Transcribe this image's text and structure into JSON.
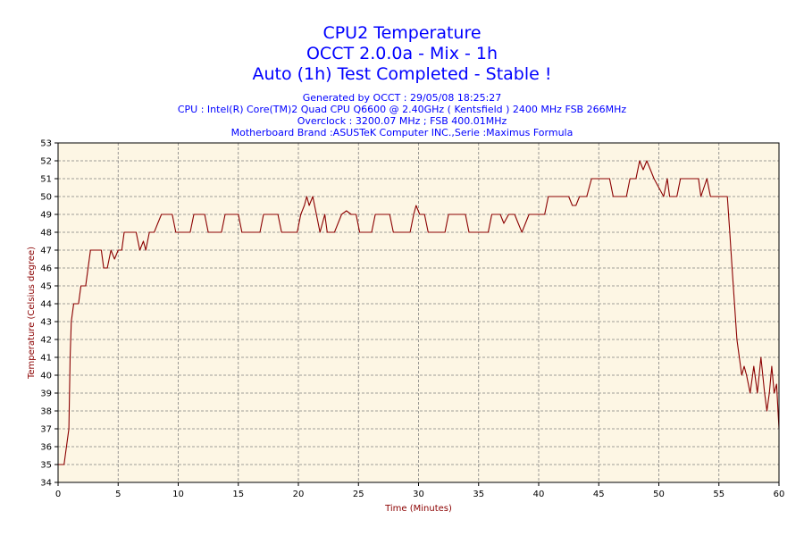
{
  "titles": {
    "line1": "CPU2 Temperature",
    "line2": "OCCT 2.0.0a - Mix - 1h",
    "line3": "Auto (1h) Test Completed - Stable !"
  },
  "info": {
    "generated": "Generated by OCCT : 29/05/08 18:25:27",
    "cpu": "CPU : Intel(R) Core(TM)2 Quad CPU Q6600 @ 2.40GHz ( Kentsfield ) 2400 MHz FSB 266MHz",
    "overclock": "Overclock : 3200.07 MHz ; FSB 400.01MHz",
    "motherboard": "Motherboard Brand :ASUSTeK Computer INC.,Serie :Maximus Formula"
  },
  "colors": {
    "title": "#0000ff",
    "plot_background": "#fdf6e4",
    "line": "#8b0000",
    "grid": "#808080",
    "axis_label": "#8b0000"
  },
  "chart_data": {
    "type": "line",
    "xlabel": "Time (Minutes)",
    "ylabel": "Temperature (Celsius degree)",
    "xlim": [
      0,
      60
    ],
    "ylim": [
      34,
      53
    ],
    "x_ticks": [
      0,
      5,
      10,
      15,
      20,
      25,
      30,
      35,
      40,
      45,
      50,
      55,
      60
    ],
    "y_ticks": [
      34,
      35,
      36,
      37,
      38,
      39,
      40,
      41,
      42,
      43,
      44,
      45,
      46,
      47,
      48,
      49,
      50,
      51,
      52,
      53
    ],
    "grid": true,
    "series": [
      {
        "points": [
          [
            0,
            35
          ],
          [
            0.5,
            35
          ],
          [
            0.7,
            36
          ],
          [
            0.9,
            37
          ],
          [
            1.0,
            41
          ],
          [
            1.1,
            43
          ],
          [
            1.3,
            44
          ],
          [
            1.7,
            44
          ],
          [
            1.9,
            45
          ],
          [
            2.3,
            45
          ],
          [
            2.5,
            46
          ],
          [
            2.7,
            47
          ],
          [
            3.3,
            47
          ],
          [
            3.6,
            47
          ],
          [
            3.8,
            46
          ],
          [
            4.1,
            46
          ],
          [
            4.4,
            47
          ],
          [
            4.7,
            46.5
          ],
          [
            5.0,
            47
          ],
          [
            5.3,
            47
          ],
          [
            5.5,
            48
          ],
          [
            6.5,
            48
          ],
          [
            6.8,
            47
          ],
          [
            7.1,
            47.5
          ],
          [
            7.3,
            47
          ],
          [
            7.6,
            48
          ],
          [
            8.0,
            48
          ],
          [
            8.3,
            48.5
          ],
          [
            8.6,
            49
          ],
          [
            9.5,
            49
          ],
          [
            9.8,
            48
          ],
          [
            11.0,
            48
          ],
          [
            11.3,
            49
          ],
          [
            12.2,
            49
          ],
          [
            12.5,
            48
          ],
          [
            13.6,
            48
          ],
          [
            13.9,
            49
          ],
          [
            15.0,
            49
          ],
          [
            15.3,
            48
          ],
          [
            16.8,
            48
          ],
          [
            17.1,
            49
          ],
          [
            18.3,
            49
          ],
          [
            18.6,
            48
          ],
          [
            19.9,
            48
          ],
          [
            20.2,
            49
          ],
          [
            20.5,
            49.5
          ],
          [
            20.7,
            50
          ],
          [
            20.9,
            49.5
          ],
          [
            21.2,
            50
          ],
          [
            21.5,
            49
          ],
          [
            21.8,
            48
          ],
          [
            22.0,
            48.5
          ],
          [
            22.2,
            49
          ],
          [
            22.4,
            48
          ],
          [
            23.0,
            48
          ],
          [
            23.3,
            48.5
          ],
          [
            23.6,
            49
          ],
          [
            24.0,
            49.2
          ],
          [
            24.4,
            49
          ],
          [
            24.8,
            49
          ],
          [
            25.1,
            48
          ],
          [
            26.1,
            48
          ],
          [
            26.4,
            49
          ],
          [
            27.6,
            49
          ],
          [
            27.9,
            48
          ],
          [
            29.3,
            48
          ],
          [
            29.6,
            49
          ],
          [
            29.8,
            49.5
          ],
          [
            30.1,
            49
          ],
          [
            30.5,
            49
          ],
          [
            30.8,
            48
          ],
          [
            32.2,
            48
          ],
          [
            32.5,
            49
          ],
          [
            33.9,
            49
          ],
          [
            34.2,
            48
          ],
          [
            35.8,
            48
          ],
          [
            36.1,
            49
          ],
          [
            36.8,
            49
          ],
          [
            37.1,
            48.5
          ],
          [
            37.5,
            49
          ],
          [
            38.0,
            49
          ],
          [
            38.3,
            48.5
          ],
          [
            38.6,
            48
          ],
          [
            38.9,
            48.5
          ],
          [
            39.2,
            49
          ],
          [
            40.5,
            49
          ],
          [
            40.8,
            50
          ],
          [
            42.5,
            50
          ],
          [
            42.8,
            49.5
          ],
          [
            43.1,
            49.5
          ],
          [
            43.4,
            50
          ],
          [
            44.0,
            50
          ],
          [
            44.4,
            51
          ],
          [
            45.9,
            51
          ],
          [
            46.2,
            50
          ],
          [
            47.3,
            50
          ],
          [
            47.6,
            51
          ],
          [
            48.1,
            51
          ],
          [
            48.4,
            52
          ],
          [
            48.7,
            51.5
          ],
          [
            49.0,
            52
          ],
          [
            49.3,
            51.5
          ],
          [
            49.6,
            51
          ],
          [
            50.0,
            50.5
          ],
          [
            50.4,
            50
          ],
          [
            50.7,
            51
          ],
          [
            50.9,
            50
          ],
          [
            51.5,
            50
          ],
          [
            51.8,
            51
          ],
          [
            53.3,
            51
          ],
          [
            53.5,
            50
          ],
          [
            54.0,
            51
          ],
          [
            54.3,
            50
          ],
          [
            55.7,
            50
          ],
          [
            55.9,
            48
          ],
          [
            56.1,
            46
          ],
          [
            56.3,
            44
          ],
          [
            56.5,
            42
          ],
          [
            56.7,
            41
          ],
          [
            56.9,
            40
          ],
          [
            57.1,
            40.5
          ],
          [
            57.3,
            40
          ],
          [
            57.6,
            39
          ],
          [
            57.9,
            40.5
          ],
          [
            58.2,
            39
          ],
          [
            58.5,
            41
          ],
          [
            58.8,
            39
          ],
          [
            59.0,
            38
          ],
          [
            59.2,
            39
          ],
          [
            59.4,
            40.5
          ],
          [
            59.6,
            39
          ],
          [
            59.8,
            39.5
          ],
          [
            60,
            37
          ]
        ]
      }
    ]
  }
}
